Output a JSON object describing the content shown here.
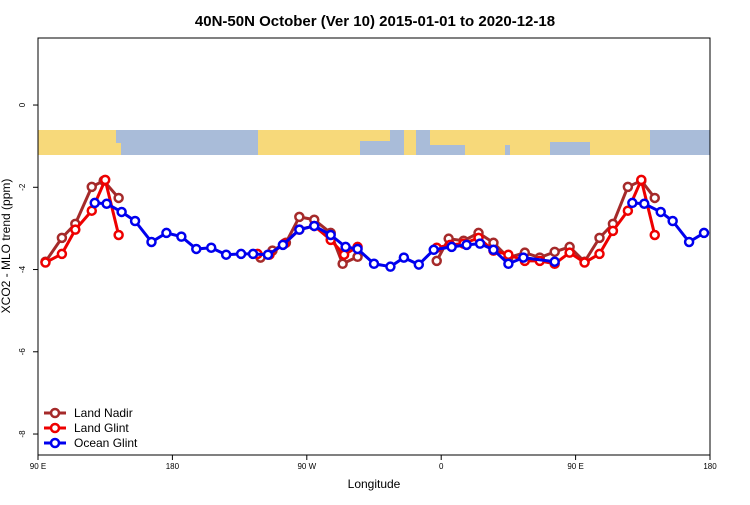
{
  "chart_data": {
    "type": "line",
    "title": "40N-50N October (Ver 10)   2015-01-01 to 2020-12-18",
    "xlabel": "Longitude",
    "ylabel": "XCO2 - MLO trend (ppm)",
    "xlim": [
      90,
      540
    ],
    "ylim": [
      -8.51,
      1.63
    ],
    "xticks": [
      {
        "value": 90,
        "label": "90 E"
      },
      180,
      {
        "value": 270,
        "label": "90 W"
      },
      {
        "value": 360,
        "label": "0"
      },
      {
        "value": 450,
        "label": "90 E"
      },
      {
        "value": 540,
        "label": "180"
      }
    ],
    "yticks": [
      0,
      -2,
      -4,
      -6,
      -8
    ],
    "legend": "bottom-left",
    "series": [
      {
        "name": "Land Nadir",
        "color": "#a52a2a",
        "x": [
          95,
          106,
          115,
          126,
          134,
          144,
          null,
          239,
          247,
          256,
          265,
          275,
          286,
          294,
          304,
          null,
          357,
          365,
          375,
          385,
          395,
          405,
          416,
          426,
          436,
          446,
          456,
          466,
          475,
          485,
          494,
          503
        ],
        "values": [
          -3.81,
          -3.23,
          -2.89,
          -1.99,
          -1.84,
          -2.26,
          null,
          -3.71,
          -3.54,
          -3.35,
          -2.72,
          -2.79,
          -3.11,
          -3.86,
          -3.69,
          null,
          -3.79,
          -3.25,
          -3.3,
          -3.11,
          -3.35,
          -3.71,
          -3.59,
          -3.71,
          -3.57,
          -3.45,
          -3.81,
          -3.23,
          -2.89,
          -1.99,
          -1.84,
          -2.26
        ]
      },
      {
        "name": "Land Glint",
        "color": "#ee0000",
        "x": [
          95,
          106,
          115,
          126,
          135,
          144,
          null,
          237,
          245,
          255,
          265,
          275,
          286,
          295,
          304,
          null,
          357,
          366,
          375,
          385,
          395,
          405,
          416,
          426,
          436,
          446,
          456,
          466,
          475,
          485,
          494,
          503
        ],
        "values": [
          -3.83,
          -3.62,
          -3.03,
          -2.57,
          -1.82,
          -3.16,
          null,
          -3.62,
          -3.64,
          -3.37,
          -3.03,
          -2.94,
          -3.28,
          -3.64,
          -3.45,
          null,
          -3.47,
          -3.4,
          -3.37,
          -3.23,
          -3.54,
          -3.64,
          -3.79,
          -3.79,
          -3.86,
          -3.59,
          -3.83,
          -3.62,
          -3.06,
          -2.57,
          -1.82,
          -3.16
        ]
      },
      {
        "name": "Ocean Glint",
        "color": "#0000ee",
        "x": [
          128,
          136,
          146,
          155,
          166,
          176,
          186,
          196,
          206,
          216,
          226,
          234,
          244,
          254,
          265,
          275,
          286,
          296,
          304,
          315,
          326,
          335,
          345,
          355,
          367,
          377,
          386,
          395,
          405,
          415,
          436,
          null,
          488,
          496,
          507,
          515,
          526,
          536
        ],
        "values": [
          -2.38,
          -2.4,
          -2.6,
          -2.82,
          -3.33,
          -3.11,
          -3.2,
          -3.5,
          -3.47,
          -3.64,
          -3.62,
          -3.62,
          -3.64,
          -3.4,
          -3.03,
          -2.94,
          -3.16,
          -3.45,
          -3.5,
          -3.86,
          -3.93,
          -3.71,
          -3.88,
          -3.52,
          -3.45,
          -3.4,
          -3.37,
          -3.52,
          -3.86,
          -3.71,
          -3.81,
          null,
          -2.38,
          -2.4,
          -2.6,
          -2.82,
          -3.33,
          -3.11
        ]
      }
    ]
  }
}
